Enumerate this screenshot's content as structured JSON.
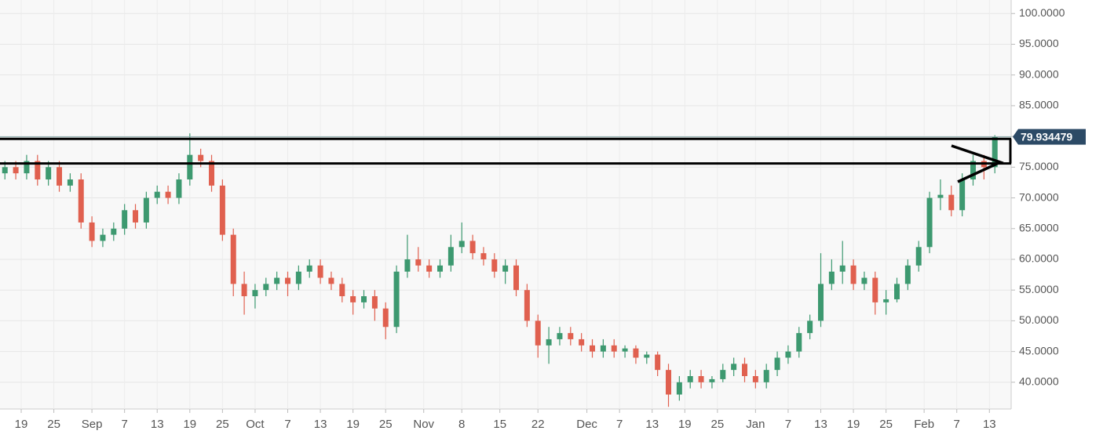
{
  "chart_data": {
    "type": "candlestick",
    "up_color": "#3d9970",
    "down_color": "#e0604f",
    "grid": true,
    "zone": [
      75.6,
      79.6
    ],
    "ylim": [
      35.9,
      102.2
    ],
    "yticks": [
      {
        "value": 40,
        "label": "40.0000"
      },
      {
        "value": 45,
        "label": "45.0000"
      },
      {
        "value": 50,
        "label": "50.0000"
      },
      {
        "value": 55,
        "label": "55.0000"
      },
      {
        "value": 60,
        "label": "60.0000"
      },
      {
        "value": 65,
        "label": "65.0000"
      },
      {
        "value": 70,
        "label": "70.0000"
      },
      {
        "value": 75,
        "label": "75.0000"
      },
      {
        "value": 80,
        "label": "80.0000"
      },
      {
        "value": 85,
        "label": "85.0000"
      },
      {
        "value": 90,
        "label": "90.0000"
      },
      {
        "value": 95,
        "label": "95.0000"
      },
      {
        "value": 100,
        "label": "100.0000"
      }
    ],
    "xlim": [
      -3.9,
      182
    ],
    "xticks": [
      {
        "value": 0,
        "label": "19"
      },
      {
        "value": 6,
        "label": "25"
      },
      {
        "value": 13,
        "label": "Sep"
      },
      {
        "value": 19,
        "label": "7"
      },
      {
        "value": 25,
        "label": "13"
      },
      {
        "value": 31,
        "label": "19"
      },
      {
        "value": 37,
        "label": "25"
      },
      {
        "value": 43,
        "label": "Oct"
      },
      {
        "value": 49,
        "label": "7"
      },
      {
        "value": 55,
        "label": "13"
      },
      {
        "value": 61,
        "label": "19"
      },
      {
        "value": 67,
        "label": "25"
      },
      {
        "value": 74,
        "label": "Nov"
      },
      {
        "value": 81,
        "label": "8"
      },
      {
        "value": 88,
        "label": "15"
      },
      {
        "value": 95,
        "label": "22"
      },
      {
        "value": 104,
        "label": "Dec"
      },
      {
        "value": 110,
        "label": "7"
      },
      {
        "value": 116,
        "label": "13"
      },
      {
        "value": 122,
        "label": "19"
      },
      {
        "value": 128,
        "label": "25"
      },
      {
        "value": 135,
        "label": "Jan"
      },
      {
        "value": 141,
        "label": "7"
      },
      {
        "value": 147,
        "label": "13"
      },
      {
        "value": 153,
        "label": "19"
      },
      {
        "value": 159,
        "label": "25"
      },
      {
        "value": 166,
        "label": "Feb"
      },
      {
        "value": 172,
        "label": "7"
      },
      {
        "value": 178,
        "label": "13"
      }
    ],
    "candles": [
      {
        "x": -3,
        "o": 74,
        "h": 76,
        "l": 73,
        "c": 75
      },
      {
        "x": -1,
        "o": 75,
        "h": 76,
        "l": 73,
        "c": 74
      },
      {
        "x": 1,
        "o": 74,
        "h": 77,
        "l": 73,
        "c": 76
      },
      {
        "x": 3,
        "o": 76,
        "h": 77,
        "l": 72,
        "c": 73
      },
      {
        "x": 5,
        "o": 73,
        "h": 76,
        "l": 72,
        "c": 75
      },
      {
        "x": 7,
        "o": 75,
        "h": 76,
        "l": 71,
        "c": 72
      },
      {
        "x": 9,
        "o": 72,
        "h": 74,
        "l": 71,
        "c": 73
      },
      {
        "x": 11,
        "o": 73,
        "h": 74,
        "l": 65,
        "c": 66
      },
      {
        "x": 13,
        "o": 66,
        "h": 67,
        "l": 62,
        "c": 63
      },
      {
        "x": 15,
        "o": 63,
        "h": 65,
        "l": 62,
        "c": 64
      },
      {
        "x": 17,
        "o": 64,
        "h": 66,
        "l": 63,
        "c": 65
      },
      {
        "x": 19,
        "o": 65,
        "h": 69,
        "l": 64,
        "c": 68
      },
      {
        "x": 21,
        "o": 68,
        "h": 69,
        "l": 65,
        "c": 66
      },
      {
        "x": 23,
        "o": 66,
        "h": 71,
        "l": 65,
        "c": 70
      },
      {
        "x": 25,
        "o": 70,
        "h": 72,
        "l": 69,
        "c": 71
      },
      {
        "x": 27,
        "o": 71,
        "h": 72,
        "l": 69,
        "c": 70
      },
      {
        "x": 29,
        "o": 70,
        "h": 74,
        "l": 69,
        "c": 73
      },
      {
        "x": 31,
        "o": 73,
        "h": 80.5,
        "l": 72,
        "c": 77
      },
      {
        "x": 33,
        "o": 77,
        "h": 78,
        "l": 75,
        "c": 76
      },
      {
        "x": 35,
        "o": 76,
        "h": 77,
        "l": 71,
        "c": 72
      },
      {
        "x": 37,
        "o": 72,
        "h": 73,
        "l": 63,
        "c": 64
      },
      {
        "x": 39,
        "o": 64,
        "h": 65,
        "l": 54,
        "c": 56
      },
      {
        "x": 41,
        "o": 56,
        "h": 58,
        "l": 51,
        "c": 54
      },
      {
        "x": 43,
        "o": 54,
        "h": 56,
        "l": 52,
        "c": 55
      },
      {
        "x": 45,
        "o": 55,
        "h": 57,
        "l": 54,
        "c": 56
      },
      {
        "x": 47,
        "o": 56,
        "h": 58,
        "l": 55,
        "c": 57
      },
      {
        "x": 49,
        "o": 57,
        "h": 58,
        "l": 54,
        "c": 56
      },
      {
        "x": 51,
        "o": 56,
        "h": 59,
        "l": 55,
        "c": 58
      },
      {
        "x": 53,
        "o": 58,
        "h": 60,
        "l": 57,
        "c": 59
      },
      {
        "x": 55,
        "o": 59,
        "h": 60,
        "l": 56,
        "c": 57
      },
      {
        "x": 57,
        "o": 57,
        "h": 58,
        "l": 55,
        "c": 56
      },
      {
        "x": 59,
        "o": 56,
        "h": 57,
        "l": 53,
        "c": 54
      },
      {
        "x": 61,
        "o": 54,
        "h": 55,
        "l": 51,
        "c": 53
      },
      {
        "x": 63,
        "o": 53,
        "h": 55,
        "l": 52,
        "c": 54
      },
      {
        "x": 65,
        "o": 54,
        "h": 55,
        "l": 50,
        "c": 52
      },
      {
        "x": 67,
        "o": 52,
        "h": 53,
        "l": 47,
        "c": 49
      },
      {
        "x": 69,
        "o": 49,
        "h": 59,
        "l": 48,
        "c": 58
      },
      {
        "x": 71,
        "o": 58,
        "h": 64,
        "l": 57,
        "c": 60
      },
      {
        "x": 73,
        "o": 60,
        "h": 62,
        "l": 58,
        "c": 59
      },
      {
        "x": 75,
        "o": 59,
        "h": 60,
        "l": 57,
        "c": 58
      },
      {
        "x": 77,
        "o": 58,
        "h": 60,
        "l": 57,
        "c": 59
      },
      {
        "x": 79,
        "o": 59,
        "h": 64,
        "l": 58,
        "c": 62
      },
      {
        "x": 81,
        "o": 62,
        "h": 66,
        "l": 61,
        "c": 63
      },
      {
        "x": 83,
        "o": 63,
        "h": 64,
        "l": 60,
        "c": 61
      },
      {
        "x": 85,
        "o": 61,
        "h": 62,
        "l": 59,
        "c": 60
      },
      {
        "x": 87,
        "o": 60,
        "h": 61,
        "l": 57,
        "c": 58
      },
      {
        "x": 89,
        "o": 58,
        "h": 60,
        "l": 56,
        "c": 59
      },
      {
        "x": 91,
        "o": 59,
        "h": 60,
        "l": 54,
        "c": 55
      },
      {
        "x": 93,
        "o": 55,
        "h": 56,
        "l": 49,
        "c": 50
      },
      {
        "x": 95,
        "o": 50,
        "h": 51,
        "l": 44,
        "c": 46
      },
      {
        "x": 97,
        "o": 46,
        "h": 49,
        "l": 43,
        "c": 47
      },
      {
        "x": 99,
        "o": 47,
        "h": 49,
        "l": 46,
        "c": 48
      },
      {
        "x": 101,
        "o": 48,
        "h": 49,
        "l": 46,
        "c": 47
      },
      {
        "x": 103,
        "o": 47,
        "h": 48,
        "l": 45,
        "c": 46
      },
      {
        "x": 105,
        "o": 46,
        "h": 47,
        "l": 44,
        "c": 45
      },
      {
        "x": 107,
        "o": 45,
        "h": 47,
        "l": 44,
        "c": 46
      },
      {
        "x": 109,
        "o": 46,
        "h": 47,
        "l": 44,
        "c": 45
      },
      {
        "x": 111,
        "o": 45,
        "h": 46,
        "l": 44,
        "c": 45.5
      },
      {
        "x": 113,
        "o": 45.5,
        "h": 46,
        "l": 43,
        "c": 44
      },
      {
        "x": 115,
        "o": 44,
        "h": 45,
        "l": 43,
        "c": 44.5
      },
      {
        "x": 117,
        "o": 44.5,
        "h": 45,
        "l": 41,
        "c": 42
      },
      {
        "x": 119,
        "o": 42,
        "h": 43,
        "l": 36,
        "c": 38
      },
      {
        "x": 121,
        "o": 38,
        "h": 41,
        "l": 37,
        "c": 40
      },
      {
        "x": 123,
        "o": 40,
        "h": 42,
        "l": 39,
        "c": 41
      },
      {
        "x": 125,
        "o": 41,
        "h": 42,
        "l": 39,
        "c": 40
      },
      {
        "x": 127,
        "o": 40,
        "h": 41,
        "l": 39,
        "c": 40.5
      },
      {
        "x": 129,
        "o": 40.5,
        "h": 43,
        "l": 40,
        "c": 42
      },
      {
        "x": 131,
        "o": 42,
        "h": 44,
        "l": 41,
        "c": 43
      },
      {
        "x": 133,
        "o": 43,
        "h": 44,
        "l": 40,
        "c": 41
      },
      {
        "x": 135,
        "o": 41,
        "h": 42,
        "l": 39,
        "c": 40
      },
      {
        "x": 137,
        "o": 40,
        "h": 43,
        "l": 39,
        "c": 42
      },
      {
        "x": 139,
        "o": 42,
        "h": 45,
        "l": 41,
        "c": 44
      },
      {
        "x": 141,
        "o": 44,
        "h": 46,
        "l": 43,
        "c": 45
      },
      {
        "x": 143,
        "o": 45,
        "h": 49,
        "l": 44,
        "c": 48
      },
      {
        "x": 145,
        "o": 48,
        "h": 51,
        "l": 47,
        "c": 50
      },
      {
        "x": 147,
        "o": 50,
        "h": 61,
        "l": 49,
        "c": 56
      },
      {
        "x": 149,
        "o": 56,
        "h": 60,
        "l": 55,
        "c": 58
      },
      {
        "x": 151,
        "o": 58,
        "h": 63,
        "l": 56,
        "c": 59
      },
      {
        "x": 153,
        "o": 59,
        "h": 60,
        "l": 55,
        "c": 56
      },
      {
        "x": 155,
        "o": 56,
        "h": 58,
        "l": 55,
        "c": 57
      },
      {
        "x": 157,
        "o": 57,
        "h": 58,
        "l": 51,
        "c": 53
      },
      {
        "x": 159,
        "o": 53,
        "h": 55,
        "l": 51,
        "c": 53.5
      },
      {
        "x": 161,
        "o": 53.5,
        "h": 57,
        "l": 53,
        "c": 56
      },
      {
        "x": 163,
        "o": 56,
        "h": 60,
        "l": 55,
        "c": 59
      },
      {
        "x": 165,
        "o": 59,
        "h": 63,
        "l": 58,
        "c": 62
      },
      {
        "x": 167,
        "o": 62,
        "h": 71,
        "l": 61,
        "c": 70
      },
      {
        "x": 169,
        "o": 70,
        "h": 73,
        "l": 68,
        "c": 70.5
      },
      {
        "x": 171,
        "o": 70.5,
        "h": 72,
        "l": 67,
        "c": 68
      },
      {
        "x": 173,
        "o": 68,
        "h": 74,
        "l": 67,
        "c": 73
      },
      {
        "x": 175,
        "o": 73,
        "h": 77,
        "l": 72,
        "c": 76
      },
      {
        "x": 177,
        "o": 76,
        "h": 77,
        "l": 73,
        "c": 75
      },
      {
        "x": 179,
        "o": 75,
        "h": 80.2,
        "l": 74,
        "c": 79.934479
      }
    ]
  }
}
